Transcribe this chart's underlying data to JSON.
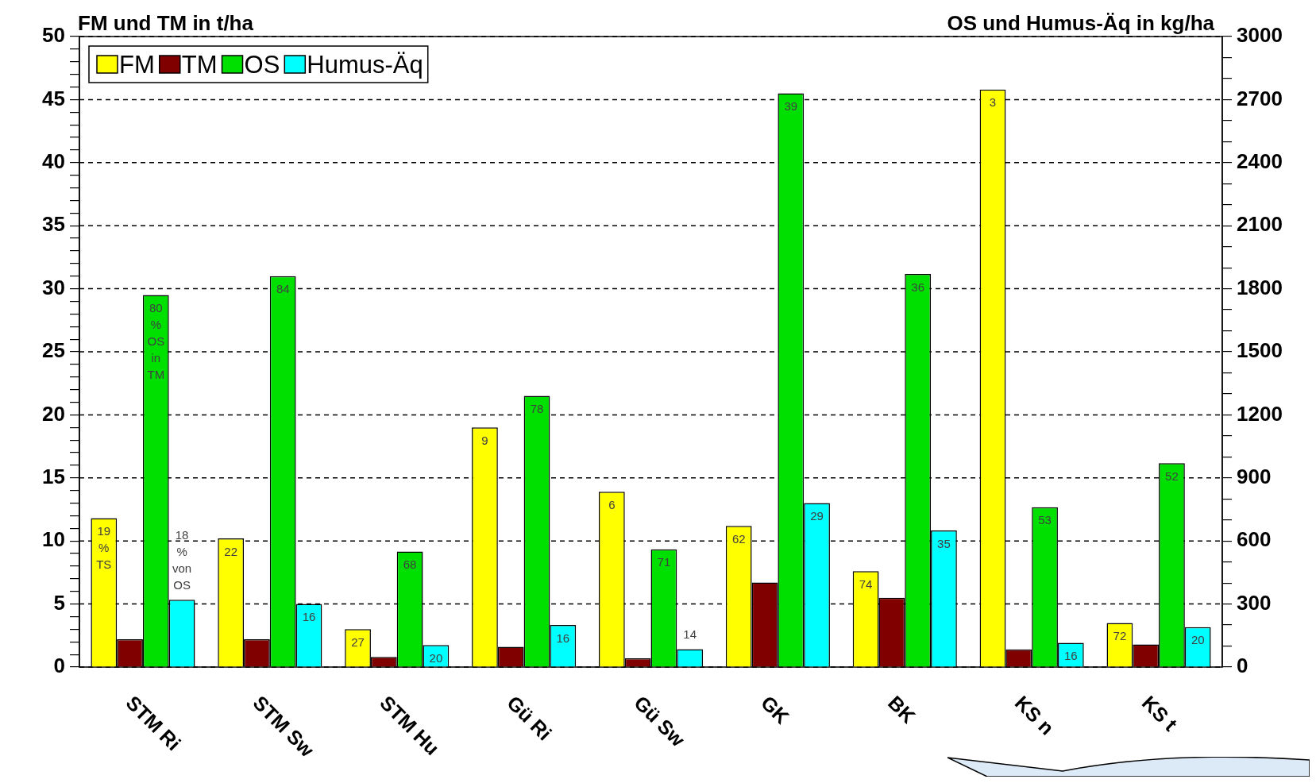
{
  "chart_data": {
    "type": "bar",
    "ylabel": "FM und TM in t/ha",
    "y2label": "OS und Humus-Äq in kg/ha",
    "categories": [
      "STM Ri",
      "STM Sw",
      "STM Hu",
      "Gü Ri",
      "Gü Sw",
      "GK",
      "BK",
      "KS n",
      "KS t"
    ],
    "series": [
      {
        "name": "FM",
        "color": "#ffff00",
        "values": [
          11.8,
          10.2,
          3.0,
          19.0,
          13.9,
          11.2,
          7.6,
          45.8,
          3.5
        ]
      },
      {
        "name": "TM",
        "color": "#800000",
        "values": [
          2.2,
          2.2,
          0.8,
          1.6,
          0.7,
          6.7,
          5.5,
          1.4,
          1.8
        ]
      },
      {
        "name": "OS",
        "color": "#00e000",
        "axis": "y2",
        "values": [
          1770,
          1860,
          550,
          1290,
          560,
          2730,
          1870,
          760,
          970
        ]
      },
      {
        "name": "Humus-Äq",
        "color": "#00ffff",
        "axis": "y2",
        "values": [
          320,
          300,
          105,
          200,
          85,
          780,
          650,
          115,
          190
        ]
      }
    ],
    "annotations": [
      "19 % TS",
      "22",
      "27",
      "9",
      "6",
      "62",
      "74",
      "3",
      "72",
      "80 % OS in TM",
      "84",
      "68",
      "78",
      "71",
      "39",
      "36",
      "53",
      "52",
      "18 % von OS",
      "16",
      "20",
      "16",
      "14",
      "29",
      "35",
      "16",
      "20"
    ],
    "ylim": [
      0,
      50
    ],
    "yticks": [
      0,
      {
        "value": 1,
        "label": null
      },
      {
        "value": 2,
        "label": null
      },
      {
        "value": 3,
        "label": null
      },
      {
        "value": 4,
        "label": null
      },
      5,
      {
        "value": 6,
        "label": null
      },
      {
        "value": 7,
        "label": null
      },
      {
        "value": 8,
        "label": null
      },
      {
        "value": 9,
        "label": null
      },
      10,
      {
        "value": 11,
        "label": null
      },
      {
        "value": 12,
        "label": null
      },
      {
        "value": 13,
        "label": null
      },
      {
        "value": 14,
        "label": null
      },
      15,
      {
        "value": 16,
        "label": null
      },
      {
        "value": 17,
        "label": null
      },
      {
        "value": 18,
        "label": null
      },
      {
        "value": 19,
        "label": null
      },
      20,
      {
        "value": 21,
        "label": null
      },
      {
        "value": 22,
        "label": null
      },
      {
        "value": 23,
        "label": null
      },
      {
        "value": 24,
        "label": null
      },
      25,
      {
        "value": 26,
        "label": null
      },
      {
        "value": 27,
        "label": null
      },
      {
        "value": 28,
        "label": null
      },
      {
        "value": 29,
        "label": null
      },
      30,
      {
        "value": 31,
        "label": null
      },
      {
        "value": 32,
        "label": null
      },
      {
        "value": 33,
        "label": null
      },
      {
        "value": 34,
        "label": null
      },
      35,
      {
        "value": 36,
        "label": null
      },
      {
        "value": 37,
        "label": null
      },
      {
        "value": 38,
        "label": null
      },
      {
        "value": 39,
        "label": null
      },
      40,
      {
        "value": 41,
        "label": null
      },
      {
        "value": 42,
        "label": null
      },
      {
        "value": 43,
        "label": null
      },
      {
        "value": 44,
        "label": null
      },
      45,
      {
        "value": 46,
        "label": null
      },
      {
        "value": 47,
        "label": null
      },
      {
        "value": 48,
        "label": null
      },
      {
        "value": 49,
        "label": null
      },
      50
    ],
    "y2lim": [
      0,
      3000
    ],
    "y2ticks": [
      0,
      {
        "value": 100,
        "label": null
      },
      {
        "value": 200,
        "label": null
      },
      300,
      {
        "value": 400,
        "label": null
      },
      {
        "value": 500,
        "label": null
      },
      600,
      {
        "value": 700,
        "label": null
      },
      {
        "value": 800,
        "label": null
      },
      900,
      {
        "value": 1000,
        "label": null
      },
      {
        "value": 1100,
        "label": null
      },
      1200,
      {
        "value": 1300,
        "label": null
      },
      {
        "value": 1400,
        "label": null
      },
      1500,
      {
        "value": 1600,
        "label": null
      },
      {
        "value": 1700,
        "label": null
      },
      1800,
      {
        "value": 1900,
        "label": null
      },
      {
        "value": 2000,
        "label": null
      },
      2100,
      {
        "value": 2200,
        "label": null
      },
      {
        "value": 2300,
        "label": null
      },
      2400,
      {
        "value": 2500,
        "label": null
      },
      {
        "value": 2600,
        "label": null
      },
      2700,
      {
        "value": 2800,
        "label": null
      },
      {
        "value": 2900,
        "label": null
      },
      3000
    ],
    "grid": "y",
    "legend": "top left"
  }
}
